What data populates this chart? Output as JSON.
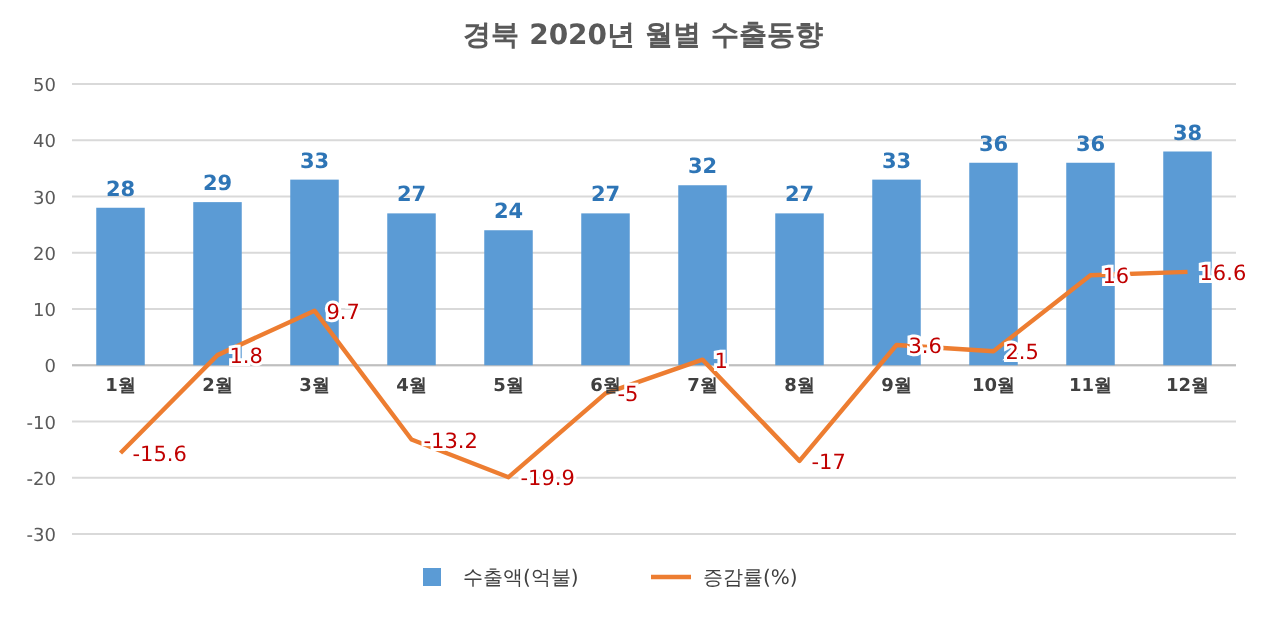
{
  "chart_data": {
    "type": "bar",
    "title": "경북 2020년 월별 수출동향",
    "categories": [
      "1월",
      "2월",
      "3월",
      "4월",
      "5월",
      "6월",
      "7월",
      "8월",
      "9월",
      "10월",
      "11월",
      "12월"
    ],
    "series": [
      {
        "name": "수출액(억불)",
        "color": "#5b9bd5",
        "values": [
          28,
          29,
          33,
          27,
          24,
          27,
          32,
          27,
          33,
          36,
          36,
          38
        ]
      },
      {
        "name": "증감률(%)",
        "type": "line",
        "color": "#ed7d31",
        "values": [
          -15.6,
          1.8,
          9.7,
          -13.2,
          -19.9,
          -5,
          1,
          -17,
          3.6,
          2.5,
          16,
          16.6
        ]
      }
    ],
    "ylim": [
      -30,
      50
    ],
    "yticks": [
      -30,
      -20,
      -10,
      0,
      10,
      20,
      30,
      40,
      50
    ],
    "grid": "y",
    "legend": "bottom",
    "data_labels": true,
    "marker": "none",
    "line_style": "solid"
  }
}
